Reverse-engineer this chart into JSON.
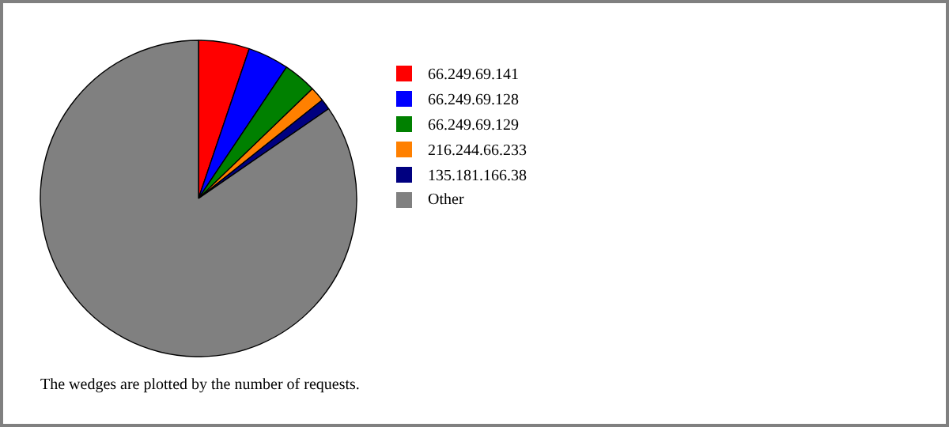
{
  "chart_data": {
    "type": "pie",
    "categories": [
      "66.249.69.141",
      "66.249.69.128",
      "66.249.69.129",
      "216.244.66.233",
      "135.181.166.38",
      "Other"
    ],
    "values": [
      5.2,
      4.2,
      3.4,
      1.5,
      1.1,
      84.6
    ],
    "colors": [
      "#ff0000",
      "#0000ff",
      "#008000",
      "#ff8000",
      "#000080",
      "#808080"
    ],
    "legend": "right",
    "annotations": [
      "The wedges are plotted by the number of requests."
    ]
  }
}
